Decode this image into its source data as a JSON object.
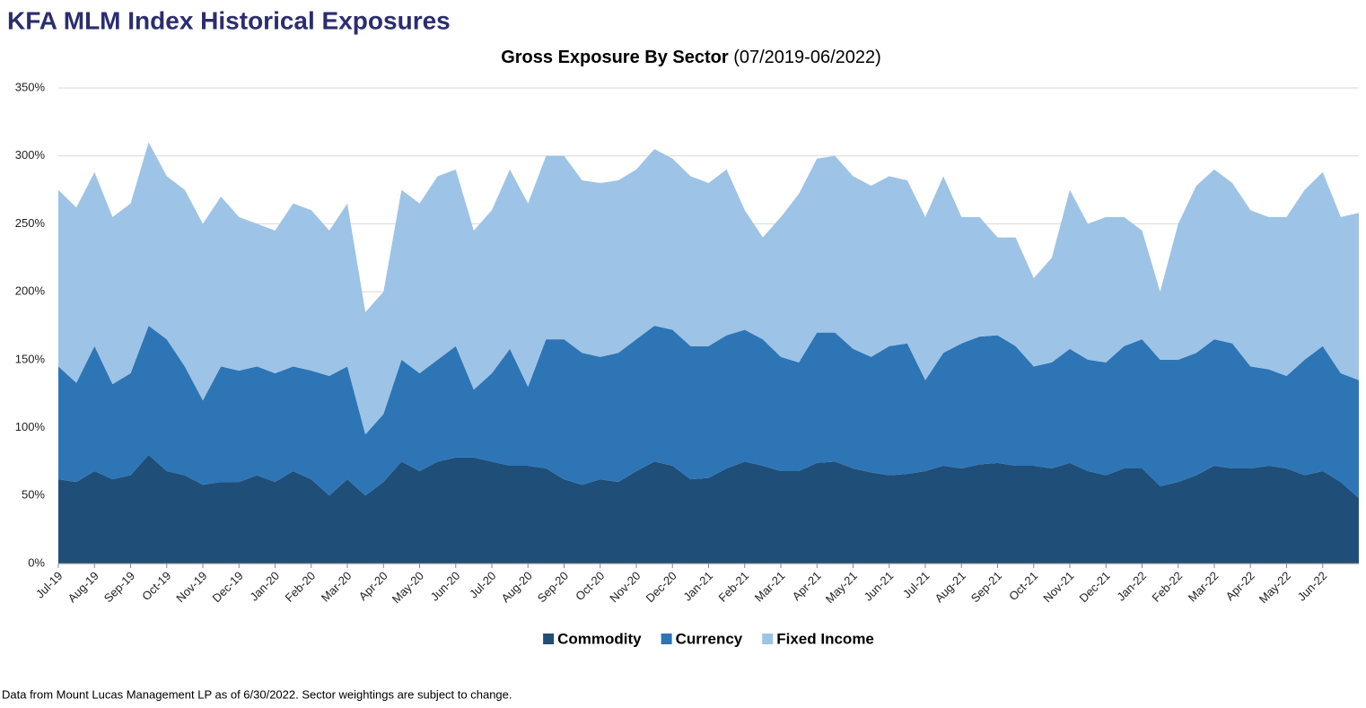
{
  "title": "KFA MLM Index Historical Exposures",
  "footnote": "Data from Mount Lucas Management LP as of 6/30/2022. Sector weightings are subject to change.",
  "chart_data": {
    "type": "stacked_area",
    "subtitle": "Gross Exposure By Sector",
    "subtitle_note": "(07/2019-06/2022)",
    "categories": [
      "Jul-19",
      null,
      "Aug-19",
      null,
      "Sep-19",
      null,
      "Oct-19",
      null,
      "Nov-19",
      null,
      "Dec-19",
      null,
      "Jan-20",
      null,
      "Feb-20",
      null,
      "Mar-20",
      null,
      "Apr-20",
      null,
      "May-20",
      null,
      "Jun-20",
      null,
      "Jul-20",
      null,
      "Aug-20",
      null,
      "Sep-20",
      null,
      "Oct-20",
      null,
      "Nov-20",
      null,
      "Dec-20",
      null,
      "Jan-21",
      null,
      "Feb-21",
      null,
      "Mar-21",
      null,
      "Apr-21",
      null,
      "May-21",
      null,
      "Jun-21",
      null,
      "Jul-21",
      null,
      "Aug-21",
      null,
      "Sep-21",
      null,
      "Oct-21",
      null,
      "Nov-21",
      null,
      "Dec-21",
      null,
      "Jan-22",
      null,
      "Feb-22",
      null,
      "Mar-22",
      null,
      "Apr-22",
      null,
      "May-22",
      null,
      "Jun-22",
      null,
      null
    ],
    "series": [
      {
        "name": "Commodity",
        "color": "#1f4e79",
        "values": [
          62,
          60,
          68,
          62,
          65,
          80,
          68,
          65,
          58,
          60,
          60,
          65,
          60,
          68,
          62,
          50,
          62,
          50,
          60,
          75,
          68,
          75,
          78,
          78,
          75,
          72,
          72,
          70,
          62,
          58,
          62,
          60,
          68,
          75,
          72,
          62,
          63,
          70,
          75,
          72,
          68,
          68,
          74,
          75,
          70,
          67,
          65,
          66,
          68,
          72,
          70,
          73,
          74,
          72,
          72,
          70,
          74,
          68,
          65,
          70,
          70,
          57,
          60,
          65,
          72,
          70,
          70,
          72,
          70,
          65,
          68,
          60,
          48
        ]
      },
      {
        "name": "Currency",
        "color": "#2e75b6",
        "values": [
          83,
          73,
          92,
          70,
          75,
          95,
          97,
          80,
          62,
          85,
          82,
          80,
          80,
          77,
          80,
          88,
          83,
          45,
          50,
          75,
          72,
          75,
          82,
          50,
          65,
          86,
          58,
          95,
          103,
          97,
          90,
          95,
          97,
          100,
          100,
          98,
          97,
          98,
          97,
          93,
          84,
          80,
          96,
          95,
          88,
          85,
          95,
          96,
          67,
          83,
          92,
          94,
          94,
          88,
          73,
          78,
          84,
          82,
          83,
          90,
          95,
          93,
          90,
          90,
          93,
          92,
          75,
          71,
          68,
          85,
          92,
          80,
          87
        ]
      },
      {
        "name": "Fixed Income",
        "color": "#9dc3e6",
        "values": [
          130,
          129,
          128,
          123,
          125,
          135,
          120,
          130,
          130,
          125,
          113,
          105,
          105,
          120,
          118,
          107,
          120,
          90,
          90,
          125,
          125,
          135,
          130,
          117,
          120,
          132,
          135,
          135,
          135,
          127,
          128,
          127,
          125,
          130,
          126,
          125,
          120,
          122,
          88,
          75,
          103,
          124,
          128,
          130,
          127,
          126,
          125,
          120,
          120,
          130,
          93,
          88,
          72,
          80,
          65,
          77,
          117,
          100,
          107,
          95,
          80,
          50,
          100,
          123,
          125,
          118,
          115,
          112,
          117,
          125,
          128,
          115,
          123
        ]
      }
    ],
    "ylim": [
      0,
      350
    ],
    "yticks": [
      {
        "value": 0,
        "label": "0%"
      },
      {
        "value": 50,
        "label": "50%"
      },
      {
        "value": 100,
        "label": "100%"
      },
      {
        "value": 150,
        "label": "150%"
      },
      {
        "value": 200,
        "label": "200%"
      },
      {
        "value": 250,
        "label": "250%"
      },
      {
        "value": 300,
        "label": "300%"
      },
      {
        "value": 350,
        "label": "350%"
      }
    ],
    "grid": true,
    "legend": "bottom"
  }
}
